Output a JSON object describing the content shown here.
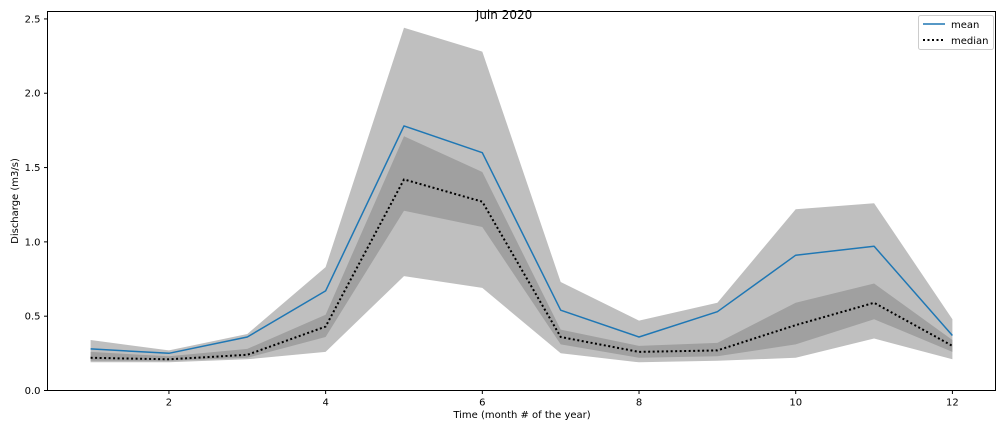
{
  "chart_data": {
    "type": "line",
    "title": "Juin 2020",
    "xlabel": "Time (month # of the year)",
    "ylabel": "Discharge (m3/s)",
    "x": [
      1,
      2,
      3,
      4,
      5,
      6,
      7,
      8,
      9,
      10,
      11,
      12
    ],
    "xlim": [
      0.45,
      12.55
    ],
    "ylim": [
      0,
      2.55
    ],
    "xticks": [
      2,
      4,
      6,
      8,
      10,
      12
    ],
    "yticks": [
      0.0,
      0.5,
      1.0,
      1.5,
      2.0,
      2.5
    ],
    "ytick_labels": [
      "0.0",
      "0.5",
      "1.0",
      "1.5",
      "2.0",
      "2.5"
    ],
    "grid": false,
    "legend_position": "top-right",
    "series": [
      {
        "name": "mean",
        "style": "solid",
        "color": "#1f77b4",
        "values": [
          0.28,
          0.25,
          0.36,
          0.67,
          1.78,
          1.6,
          0.54,
          0.36,
          0.53,
          0.91,
          0.97,
          0.37
        ]
      },
      {
        "name": "median",
        "style": "dotted",
        "color": "#000000",
        "values": [
          0.22,
          0.21,
          0.24,
          0.43,
          1.42,
          1.27,
          0.36,
          0.26,
          0.27,
          0.44,
          0.59,
          0.3
        ]
      }
    ],
    "bands": [
      {
        "color": "#bfbfbf",
        "lower": [
          0.19,
          0.19,
          0.21,
          0.26,
          0.77,
          0.69,
          0.25,
          0.19,
          0.2,
          0.22,
          0.35,
          0.21
        ],
        "upper": [
          0.34,
          0.27,
          0.38,
          0.83,
          2.44,
          2.28,
          0.73,
          0.47,
          0.59,
          1.22,
          1.26,
          0.48
        ]
      },
      {
        "color": "#a0a0a0",
        "lower": [
          0.2,
          0.2,
          0.22,
          0.36,
          1.21,
          1.1,
          0.31,
          0.22,
          0.23,
          0.31,
          0.48,
          0.26
        ],
        "upper": [
          0.26,
          0.23,
          0.28,
          0.51,
          1.71,
          1.47,
          0.41,
          0.3,
          0.32,
          0.59,
          0.72,
          0.34
        ]
      }
    ]
  }
}
